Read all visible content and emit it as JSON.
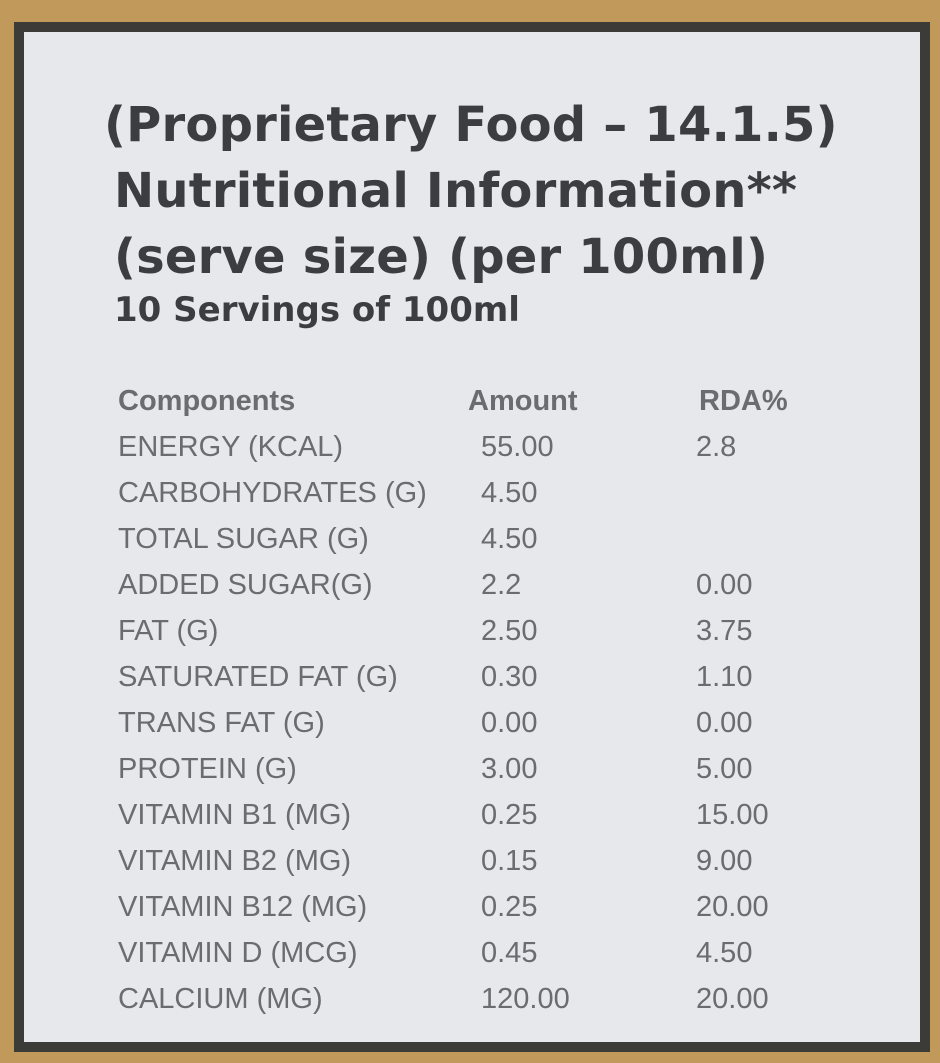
{
  "header": {
    "line1": "(Proprietary Food – 14.1.5)",
    "line2": "Nutritional Information**",
    "line3": "(serve size) (per 100ml)"
  },
  "servings": "10 Servings of 100ml",
  "table": {
    "columns": [
      "Components",
      "Amount",
      "RDA%"
    ],
    "rows": [
      {
        "component": "ENERGY (KCAL)",
        "amount": "55.00",
        "rda": "2.8"
      },
      {
        "component": "CARBOHYDRATES (G)",
        "amount": "4.50",
        "rda": ""
      },
      {
        "component": "TOTAL SUGAR (G)",
        "amount": "4.50",
        "rda": ""
      },
      {
        "component": "ADDED SUGAR(G)",
        "amount": "2.2",
        "rda": "0.00"
      },
      {
        "component": "FAT (G)",
        "amount": "2.50",
        "rda": "3.75"
      },
      {
        "component": "SATURATED FAT (G)",
        "amount": "0.30",
        "rda": "1.10"
      },
      {
        "component": "TRANS FAT (G)",
        "amount": "0.00",
        "rda": "0.00"
      },
      {
        "component": "PROTEIN (G)",
        "amount": "3.00",
        "rda": "5.00"
      },
      {
        "component": "VITAMIN B1 (MG)",
        "amount": "0.25",
        "rda": "15.00"
      },
      {
        "component": "VITAMIN B2 (MG)",
        "amount": "0.15",
        "rda": "9.00"
      },
      {
        "component": "VITAMIN B12 (MG)",
        "amount": "0.25",
        "rda": "20.00"
      },
      {
        "component": "VITAMIN D (MCG)",
        "amount": "0.45",
        "rda": "4.50"
      },
      {
        "component": "CALCIUM (MG)",
        "amount": "120.00",
        "rda": "20.00"
      }
    ]
  },
  "colors": {
    "background": "#c19a5b",
    "frame": "#3d3b37",
    "panel": "#e6e8eb",
    "heading_text": "#3c3d41",
    "table_text": "#6a6c72"
  }
}
